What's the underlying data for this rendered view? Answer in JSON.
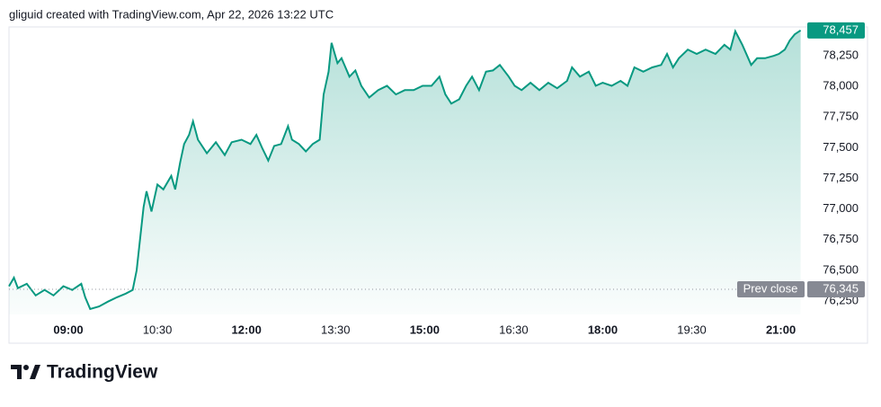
{
  "header": "gliguid created with TradingView.com, Apr 22, 2026 13:22 UTC",
  "brand": "TradingView",
  "chart_data": {
    "type": "area",
    "color": "#089981",
    "x": [
      480,
      485,
      489,
      498,
      507,
      516,
      525,
      535,
      544,
      553,
      557,
      562,
      571,
      580,
      589,
      598,
      605,
      609,
      613,
      616,
      619,
      624,
      630,
      636,
      644,
      648,
      653,
      657,
      662,
      666,
      671,
      680,
      689,
      698,
      705,
      715,
      724,
      730,
      736,
      742,
      748,
      755,
      762,
      766,
      773,
      780,
      787,
      794,
      798,
      803,
      806,
      812,
      816,
      824,
      830,
      836,
      844,
      853,
      862,
      871,
      880,
      889,
      898,
      907,
      915,
      921,
      927,
      935,
      942,
      948,
      955,
      962,
      969,
      976,
      985,
      991,
      998,
      1007,
      1016,
      1025,
      1034,
      1044,
      1049,
      1057,
      1066,
      1073,
      1080,
      1089,
      1098,
      1105,
      1112,
      1121,
      1130,
      1139,
      1145,
      1151,
      1157,
      1166,
      1175,
      1184,
      1194,
      1203,
      1209,
      1214,
      1221,
      1230,
      1236,
      1244,
      1253,
      1258,
      1264,
      1269,
      1274,
      1280
    ],
    "values": [
      76370,
      76440,
      76355,
      76390,
      76295,
      76340,
      76295,
      76370,
      76340,
      76390,
      76280,
      76185,
      76205,
      76245,
      76280,
      76310,
      76340,
      76500,
      76795,
      77015,
      77145,
      76980,
      77200,
      77160,
      77270,
      77160,
      77380,
      77530,
      77605,
      77715,
      77565,
      77455,
      77545,
      77440,
      77545,
      77565,
      77530,
      77605,
      77495,
      77395,
      77515,
      77530,
      77675,
      77565,
      77530,
      77470,
      77530,
      77565,
      77935,
      78120,
      78355,
      78190,
      78230,
      78080,
      78130,
      78005,
      77910,
      77970,
      78005,
      77935,
      77970,
      77970,
      78005,
      78005,
      78080,
      77935,
      77860,
      77895,
      78005,
      78080,
      77970,
      78120,
      78130,
      78175,
      78080,
      78005,
      77970,
      78030,
      77970,
      78030,
      77985,
      78045,
      78155,
      78080,
      78120,
      78005,
      78030,
      78005,
      78045,
      78005,
      78155,
      78120,
      78155,
      78175,
      78265,
      78155,
      78230,
      78300,
      78265,
      78300,
      78265,
      78340,
      78300,
      78450,
      78340,
      78175,
      78230,
      78230,
      78250,
      78265,
      78300,
      78375,
      78425,
      78457
    ],
    "xlim": [
      480,
      1284
    ],
    "xticks": [
      {
        "value": 540,
        "label": "09:00"
      },
      {
        "value": 630,
        "label": "10:30"
      },
      {
        "value": 720,
        "label": "12:00"
      },
      {
        "value": 810,
        "label": "13:30"
      },
      {
        "value": 900,
        "label": "15:00"
      },
      {
        "value": 990,
        "label": "16:30"
      },
      {
        "value": 1080,
        "label": "18:00"
      },
      {
        "value": 1170,
        "label": "19:30"
      },
      {
        "value": 1260,
        "label": "21:00"
      }
    ],
    "ylim": [
      76140,
      78485
    ],
    "yticks": [
      {
        "value": 76250,
        "label": "76,250"
      },
      {
        "value": 76500,
        "label": "76,500"
      },
      {
        "value": 76750,
        "label": "76,750"
      },
      {
        "value": 77000,
        "label": "77,000"
      },
      {
        "value": 77250,
        "label": "77,250"
      },
      {
        "value": 77500,
        "label": "77,500"
      },
      {
        "value": 77750,
        "label": "77,750"
      },
      {
        "value": 78000,
        "label": "78,000"
      },
      {
        "value": 78250,
        "label": "78,250"
      }
    ],
    "last_value": {
      "value": 78457,
      "label": "78,457"
    },
    "prev_close": {
      "name": "Prev close",
      "value": 76345,
      "label": "76,345"
    }
  }
}
